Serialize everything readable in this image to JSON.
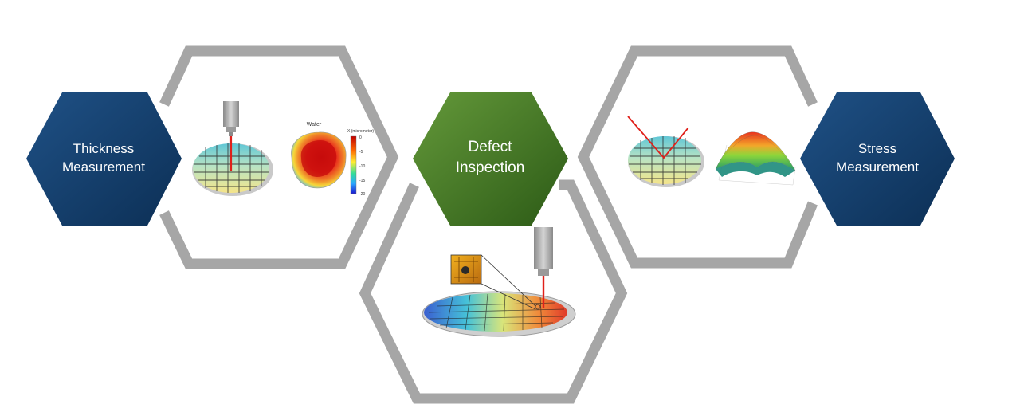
{
  "hexagons": {
    "thickness": {
      "line1": "Thickness",
      "line2": "Measurement"
    },
    "defect": {
      "line1": "Defect",
      "line2": "Inspection"
    },
    "stress": {
      "line1": "Stress",
      "line2": "Measurement"
    }
  },
  "thickness_map": {
    "title": "Wafer",
    "scale_title": "X (micrometer)",
    "scale_ticks": [
      "0",
      "-5",
      "-10",
      "-15",
      "-20"
    ]
  },
  "colors": {
    "blue_hex_top": "#1e4f82",
    "blue_hex_bottom": "#0e3157",
    "green_hex_top": "#5b8f2f",
    "green_hex_bottom": "#2f5e18",
    "frame_gray": "#a6a6a6",
    "laser_red": "#e0201a"
  }
}
